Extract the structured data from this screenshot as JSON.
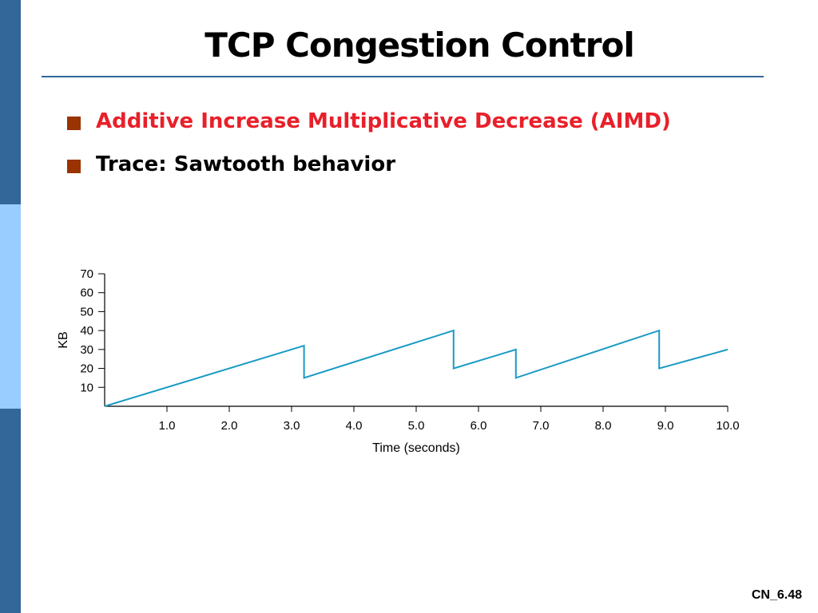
{
  "slide": {
    "title": "TCP Congestion Control",
    "bullets": [
      {
        "text": "Additive Increase Multiplicative Decrease (AIMD)",
        "color": "#e8202a"
      },
      {
        "text": "Trace: Sawtooth behavior",
        "color": "#000000"
      }
    ],
    "footer": "CN_6.48"
  },
  "colors": {
    "sidebar_dark": "#336699",
    "sidebar_light": "#99ccff",
    "title_rule": "#336699",
    "bullet_marker": "#993300",
    "series_line": "#1a9bc4"
  },
  "chart_data": {
    "type": "line",
    "title": "",
    "xlabel": "Time (seconds)",
    "ylabel": "KB",
    "xlim": [
      0,
      10
    ],
    "ylim": [
      0,
      70
    ],
    "x_ticks": [
      1.0,
      2.0,
      3.0,
      4.0,
      5.0,
      6.0,
      7.0,
      8.0,
      9.0,
      10.0
    ],
    "x_tick_labels": [
      "1.0",
      "2.0",
      "3.0",
      "4.0",
      "5.0",
      "6.0",
      "7.0",
      "8.0",
      "9.0",
      "10.0"
    ],
    "y_ticks": [
      10,
      20,
      30,
      40,
      50,
      60,
      70
    ],
    "y_tick_labels": [
      "10",
      "20",
      "30",
      "40",
      "50",
      "60",
      "70"
    ],
    "grid": false,
    "series": [
      {
        "x": [
          0.0,
          3.2,
          3.2,
          5.6,
          5.6,
          6.6,
          6.6,
          8.9,
          8.9,
          10.0
        ],
        "y": [
          0,
          32,
          15,
          40,
          20,
          30,
          15,
          40,
          20,
          30
        ]
      }
    ]
  }
}
